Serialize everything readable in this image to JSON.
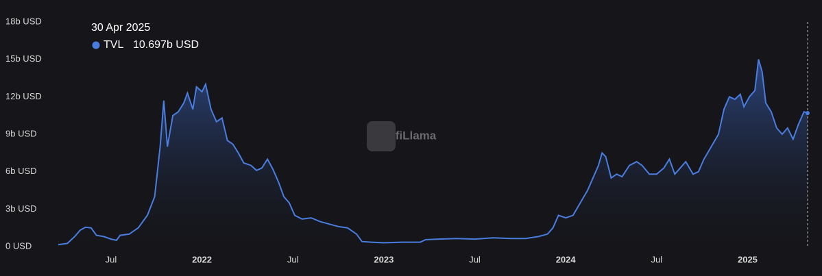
{
  "chart_data": {
    "type": "area",
    "watermark": "DefiLlama",
    "tooltip": {
      "date": "30 Apr 2025",
      "value": 10.697,
      "label": "10.697b USD"
    },
    "series": [
      {
        "name": "TVL",
        "color": "#4a7de0",
        "x": [
          2021.21,
          2021.26,
          2021.3,
          2021.33,
          2021.36,
          2021.39,
          2021.42,
          2021.46,
          2021.5,
          2021.53,
          2021.55,
          2021.6,
          2021.65,
          2021.7,
          2021.74,
          2021.77,
          2021.79,
          2021.81,
          2021.84,
          2021.87,
          2021.9,
          2021.92,
          2021.95,
          2021.97,
          2022.0,
          2022.02,
          2022.05,
          2022.08,
          2022.11,
          2022.14,
          2022.17,
          2022.2,
          2022.23,
          2022.27,
          2022.3,
          2022.33,
          2022.36,
          2022.39,
          2022.42,
          2022.45,
          2022.48,
          2022.51,
          2022.55,
          2022.6,
          2022.65,
          2022.7,
          2022.75,
          2022.8,
          2022.85,
          2022.88,
          2022.93,
          2023.0,
          2023.1,
          2023.2,
          2023.23,
          2023.3,
          2023.4,
          2023.5,
          2023.6,
          2023.7,
          2023.78,
          2023.85,
          2023.9,
          2023.93,
          2023.96,
          2024.0,
          2024.04,
          2024.08,
          2024.12,
          2024.15,
          2024.18,
          2024.2,
          2024.22,
          2024.25,
          2024.28,
          2024.31,
          2024.35,
          2024.39,
          2024.42,
          2024.46,
          2024.5,
          2024.54,
          2024.57,
          2024.6,
          2024.63,
          2024.66,
          2024.7,
          2024.73,
          2024.76,
          2024.8,
          2024.84,
          2024.87,
          2024.9,
          2024.93,
          2024.96,
          2024.98,
          2025.01,
          2025.04,
          2025.06,
          2025.08,
          2025.1,
          2025.13,
          2025.16,
          2025.19,
          2025.22,
          2025.25,
          2025.28,
          2025.31,
          2025.33
        ],
        "values": [
          0.15,
          0.25,
          0.8,
          1.3,
          1.55,
          1.5,
          0.9,
          0.8,
          0.6,
          0.5,
          0.9,
          1.0,
          1.5,
          2.5,
          4.0,
          8,
          11.7,
          8,
          10.5,
          10.8,
          11.5,
          12.3,
          11,
          12.8,
          12.4,
          13.0,
          11,
          10,
          10.3,
          8.5,
          8.2,
          7.5,
          6.7,
          6.5,
          6.1,
          6.3,
          7.0,
          6.2,
          5.2,
          4.0,
          3.5,
          2.5,
          2.2,
          2.3,
          2.0,
          1.8,
          1.6,
          1.5,
          1.0,
          0.4,
          0.35,
          0.3,
          0.35,
          0.35,
          0.55,
          0.6,
          0.65,
          0.6,
          0.7,
          0.65,
          0.65,
          0.8,
          1.0,
          1.5,
          2.5,
          2.3,
          2.5,
          3.5,
          4.5,
          5.5,
          6.5,
          7.5,
          7.2,
          5.5,
          5.8,
          5.6,
          6.5,
          6.8,
          6.5,
          5.8,
          5.8,
          6.3,
          7.0,
          5.8,
          6.3,
          6.8,
          5.8,
          6.0,
          7.0,
          8.0,
          9.0,
          11,
          12,
          11.8,
          12.2,
          11.2,
          12,
          12.5,
          15.0,
          14,
          11.5,
          10.8,
          9.5,
          9.0,
          9.5,
          8.6,
          9.8,
          10.8,
          10.697
        ]
      }
    ],
    "xlim": [
      2021.21,
      2025.33
    ],
    "xticks": [
      {
        "value": 2021.5,
        "label": "Jul"
      },
      2022,
      {
        "value": 2022.5,
        "label": "Jul"
      },
      2023,
      {
        "value": 2023.5,
        "label": "Jul"
      },
      2024,
      {
        "value": 2024.5,
        "label": "Jul"
      },
      2025
    ],
    "ylim": [
      0,
      18
    ],
    "yticks": [
      {
        "value": 0,
        "label": "0 USD"
      },
      {
        "value": 3,
        "label": "3b USD"
      },
      {
        "value": 6,
        "label": "6b USD"
      },
      {
        "value": 9,
        "label": "9b USD"
      },
      {
        "value": 12,
        "label": "12b USD"
      },
      {
        "value": 15,
        "label": "15b USD"
      },
      {
        "value": 18,
        "label": "18b USD"
      }
    ]
  }
}
